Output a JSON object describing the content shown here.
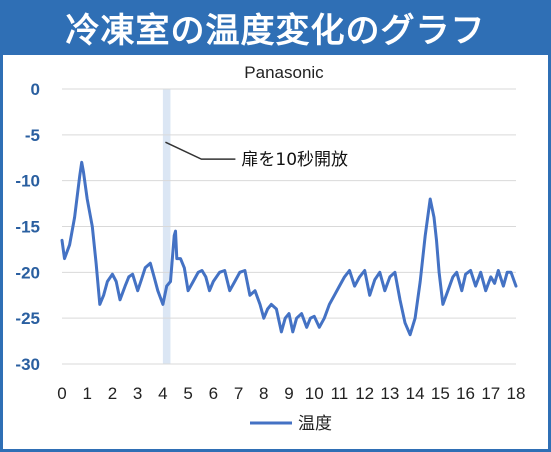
{
  "header": {
    "title": "冷凍室の温度変化のグラフ"
  },
  "colors": {
    "title_bg": "#2f6fb5",
    "line": "#4472c4",
    "axis_text": "#2a5fa0",
    "highlight_band": "#dbe6f4"
  },
  "chart_data": {
    "type": "line",
    "title": "Panasonic",
    "xlim": [
      0,
      18
    ],
    "ylim": [
      -30,
      0
    ],
    "x_ticks": [
      "0",
      "1",
      "2",
      "3",
      "4",
      "5",
      "6",
      "7",
      "8",
      "9",
      "10",
      "11",
      "12",
      "13",
      "14",
      "15",
      "16",
      "17",
      "18"
    ],
    "y_ticks": [
      "0",
      "-5",
      "-10",
      "-15",
      "-20",
      "-25",
      "-30"
    ],
    "grid": "horizontal",
    "legend_position": "bottom",
    "highlight_band": [
      4.0,
      4.3
    ],
    "annotation": {
      "text": "扉を10秒開放",
      "x": 4.1,
      "y": -5.8
    },
    "series": [
      {
        "name": "温度",
        "x": [
          0,
          0.1,
          0.3,
          0.5,
          0.7,
          0.78,
          0.85,
          1.0,
          1.2,
          1.35,
          1.5,
          1.65,
          1.8,
          2.0,
          2.15,
          2.3,
          2.5,
          2.65,
          2.8,
          3.0,
          3.15,
          3.3,
          3.5,
          3.65,
          3.8,
          4.0,
          4.15,
          4.3,
          4.45,
          4.5,
          4.55,
          4.7,
          4.85,
          5.0,
          5.2,
          5.4,
          5.55,
          5.7,
          5.85,
          6.0,
          6.25,
          6.45,
          6.65,
          6.85,
          7.05,
          7.25,
          7.45,
          7.65,
          7.85,
          8.0,
          8.15,
          8.3,
          8.5,
          8.7,
          8.85,
          9.0,
          9.15,
          9.3,
          9.5,
          9.7,
          9.85,
          10.0,
          10.2,
          10.4,
          10.6,
          10.8,
          11.0,
          11.2,
          11.4,
          11.6,
          11.8,
          12.0,
          12.2,
          12.4,
          12.6,
          12.8,
          13.0,
          13.2,
          13.4,
          13.6,
          13.8,
          14.0,
          14.2,
          14.4,
          14.6,
          14.75,
          14.85,
          14.95,
          15.1,
          15.3,
          15.5,
          15.65,
          15.85,
          16.0,
          16.2,
          16.4,
          16.6,
          16.8,
          17.0,
          17.15,
          17.3,
          17.5,
          17.65,
          17.8,
          18.0
        ],
        "values": [
          -16.5,
          -18.5,
          -17.0,
          -14.0,
          -9.5,
          -8.0,
          -9.0,
          -12.0,
          -15.0,
          -19.0,
          -23.5,
          -22.5,
          -21.0,
          -20.2,
          -21.0,
          -23.0,
          -21.5,
          -20.5,
          -20.2,
          -22.0,
          -20.8,
          -19.5,
          -19.0,
          -20.5,
          -22.0,
          -23.5,
          -21.5,
          -21.0,
          -16.0,
          -15.5,
          -18.5,
          -18.5,
          -19.5,
          -22.0,
          -21.0,
          -20.0,
          -19.8,
          -20.5,
          -22.0,
          -21.0,
          -20.0,
          -19.8,
          -22.0,
          -21.0,
          -20.0,
          -19.8,
          -22.5,
          -22.0,
          -23.5,
          -25.0,
          -24.0,
          -23.5,
          -24.0,
          -26.5,
          -25.0,
          -24.5,
          -26.5,
          -25.0,
          -24.5,
          -26.0,
          -25.0,
          -24.8,
          -26.0,
          -25.0,
          -23.5,
          -22.5,
          -21.5,
          -20.5,
          -19.8,
          -21.5,
          -20.5,
          -19.8,
          -22.5,
          -20.8,
          -20.0,
          -22.0,
          -20.5,
          -20.0,
          -23.0,
          -25.5,
          -26.8,
          -25.0,
          -21.0,
          -16.0,
          -12.0,
          -14.0,
          -16.5,
          -20.0,
          -23.5,
          -22.0,
          -20.5,
          -20.0,
          -22.0,
          -20.2,
          -19.8,
          -21.5,
          -20.0,
          -22.0,
          -20.5,
          -21.2,
          -19.8,
          -21.5,
          -20.0,
          -20.0,
          -21.5
        ]
      }
    ]
  }
}
